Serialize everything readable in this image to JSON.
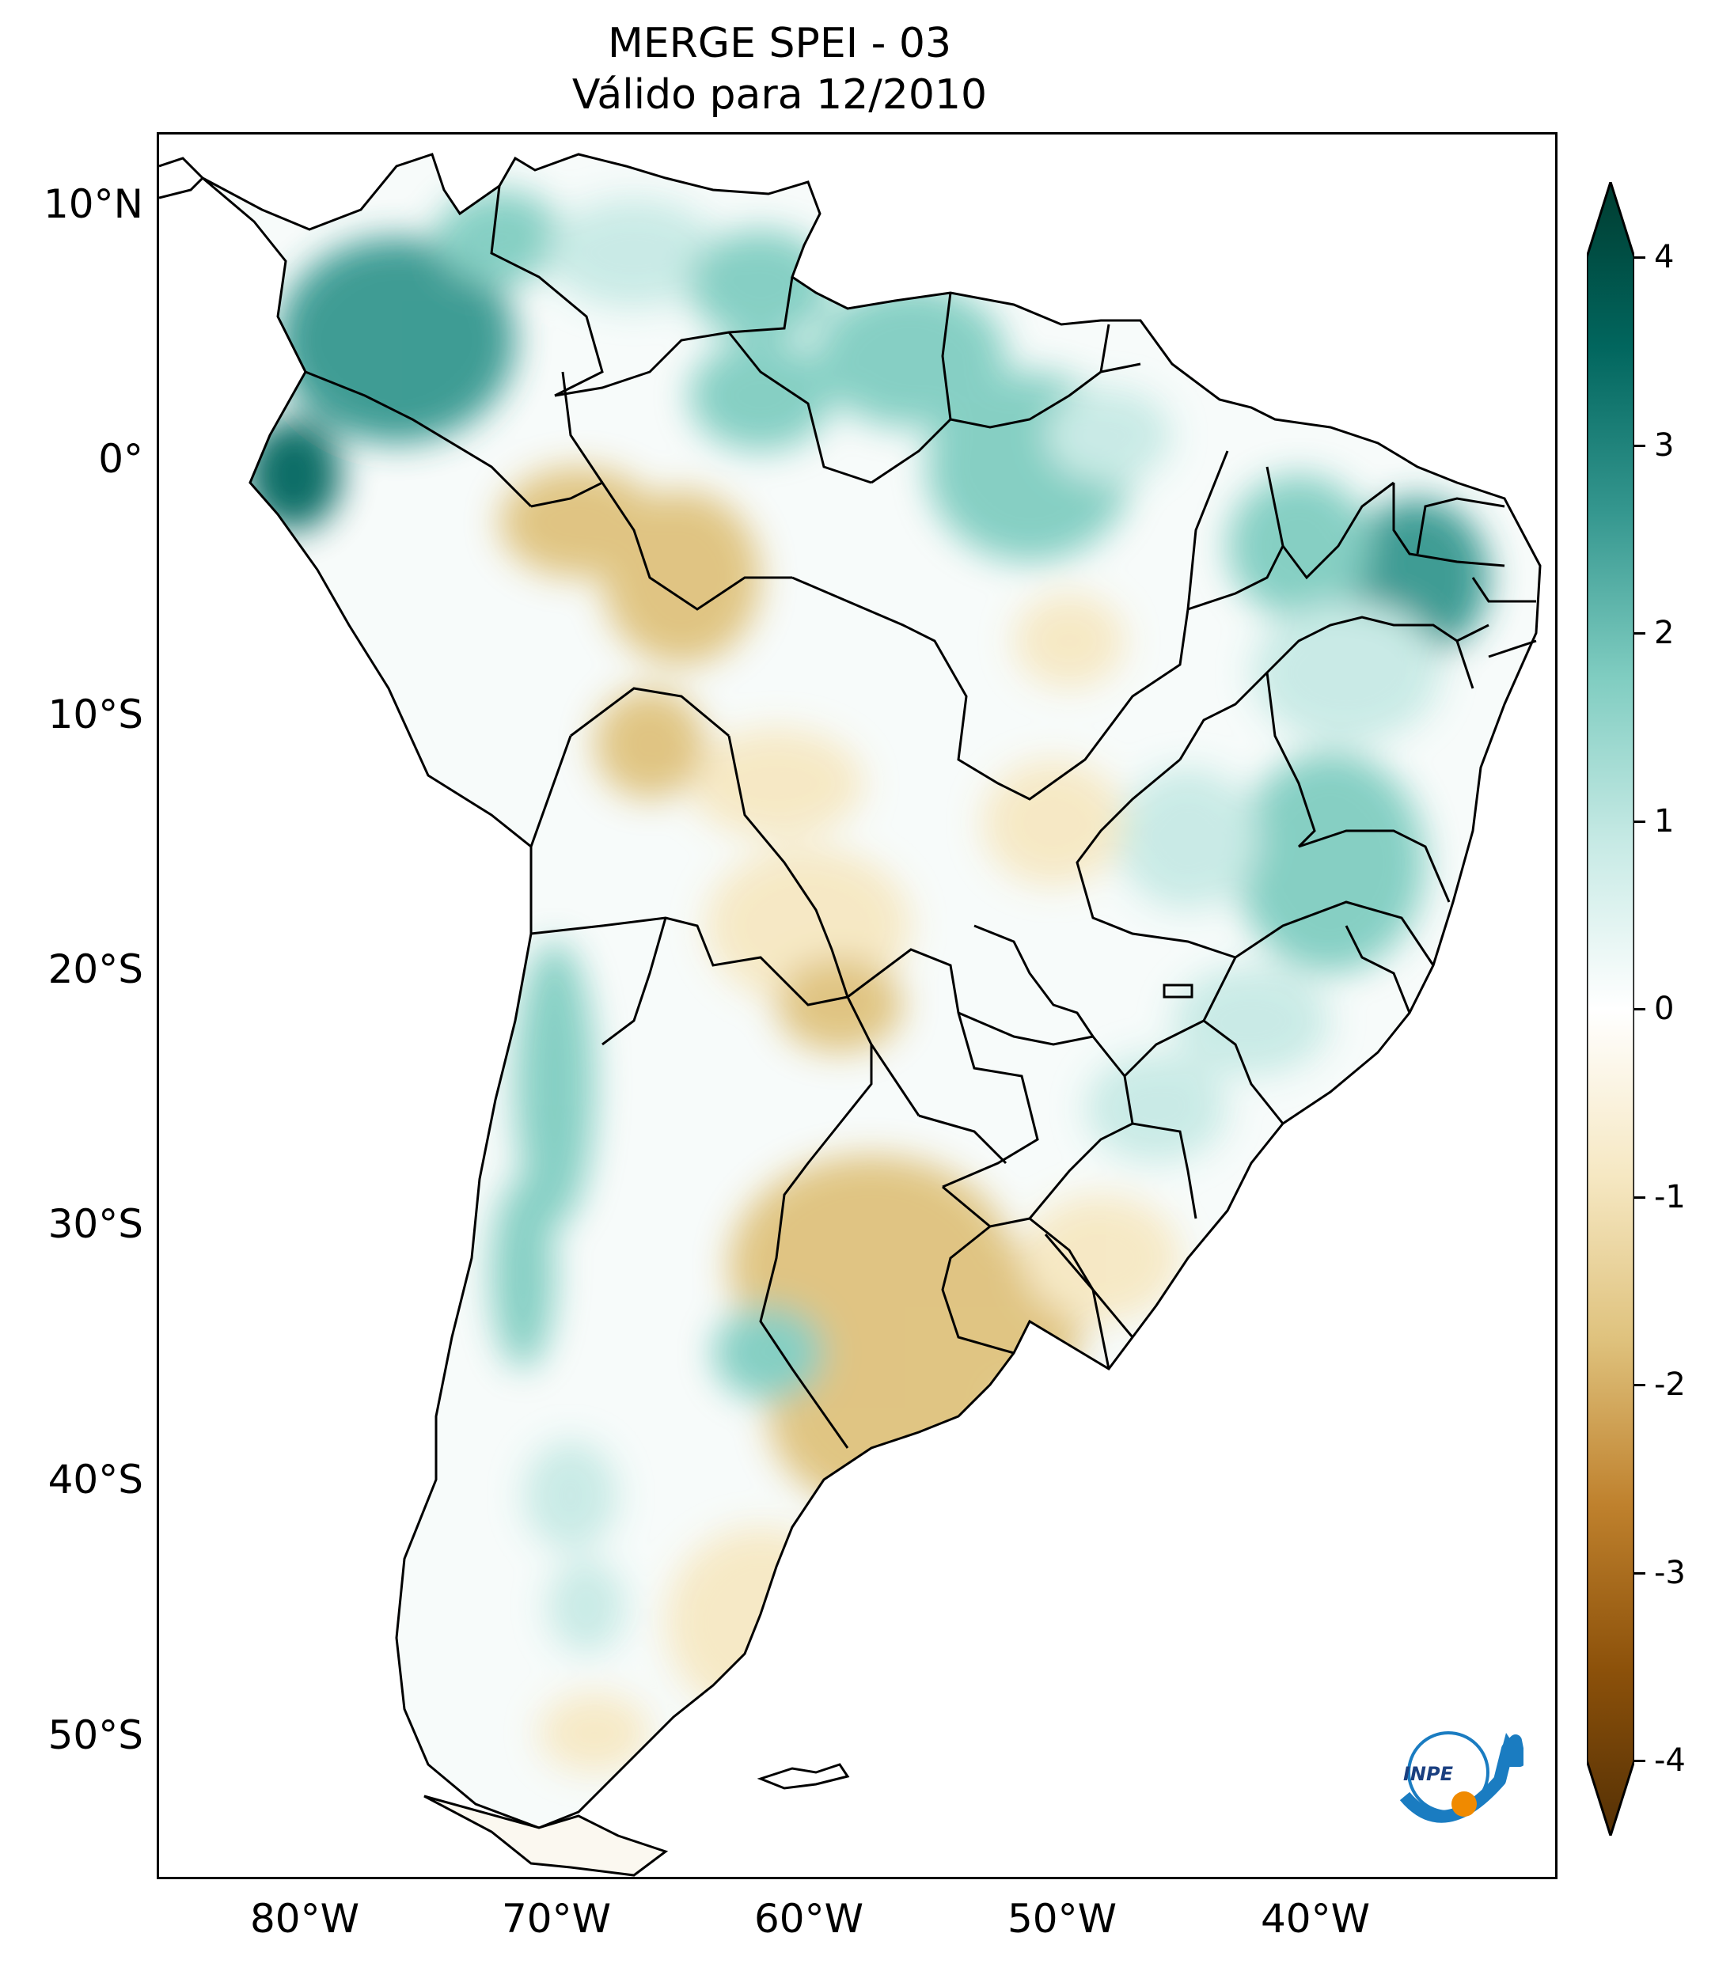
{
  "title": {
    "line1": "MERGE   SPEI - 03",
    "line2": "Válido para 12/2010"
  },
  "latitude_ticks": [
    "10°N",
    "0°",
    "10°S",
    "20°S",
    "30°S",
    "40°S",
    "50°S"
  ],
  "longitude_ticks": [
    "80°W",
    "70°W",
    "60°W",
    "50°W",
    "40°W"
  ],
  "colorbar": {
    "ticks": [
      "4",
      "3",
      "2",
      "1",
      "0",
      "-1",
      "-2",
      "-3",
      "-4"
    ],
    "min": -4,
    "max": 4,
    "extend": "both",
    "colors": [
      "#543005",
      "#8c510a",
      "#bf812d",
      "#dfc27d",
      "#f6e8c3",
      "#ffffff",
      "#c7eae5",
      "#80cdc1",
      "#35978f",
      "#01665e",
      "#003c30"
    ]
  },
  "logo": {
    "text": "INPE"
  }
}
